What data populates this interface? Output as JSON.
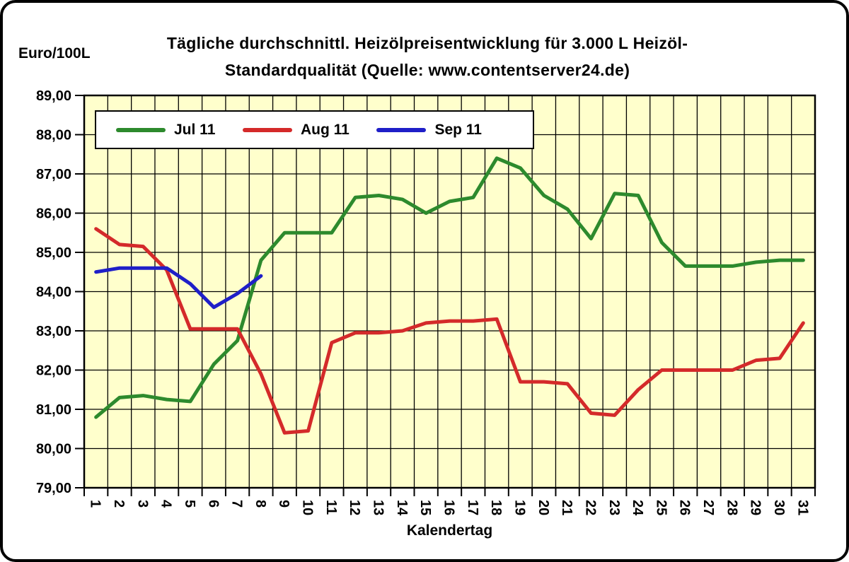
{
  "title": {
    "line1": "Tägliche durchschnittl. Heizölpreisentwicklung für 3.000 L Heizöl-",
    "line2": "Standardqualität (Quelle: www.contentserver24.de)"
  },
  "y_axis": {
    "unit_label": "Euro/100L",
    "tick_labels": [
      "89,00",
      "88,00",
      "87,00",
      "86,00",
      "85,00",
      "84,00",
      "83,00",
      "82,00",
      "81,00",
      "80,00",
      "79,00"
    ]
  },
  "x_axis": {
    "label": "Kalendertag",
    "tick_labels": [
      "1",
      "2",
      "3",
      "4",
      "5",
      "6",
      "7",
      "8",
      "9",
      "10",
      "11",
      "12",
      "13",
      "14",
      "15",
      "16",
      "17",
      "18",
      "19",
      "20",
      "21",
      "22",
      "23",
      "24",
      "25",
      "26",
      "27",
      "28",
      "29",
      "30",
      "31"
    ]
  },
  "legend": {
    "items": [
      {
        "label": "Jul 11",
        "color": "#2d8a2d"
      },
      {
        "label": "Aug 11",
        "color": "#d42a2a"
      },
      {
        "label": "Sep 11",
        "color": "#1f1fc8"
      }
    ]
  },
  "colors": {
    "plot_bg": "#ffffcc",
    "grid": "#000000",
    "axis": "#000000",
    "jul": "#2d8a2d",
    "aug": "#d42a2a",
    "sep": "#1f1fc8"
  },
  "chart_data": {
    "type": "line",
    "title": "Tägliche durchschnittl. Heizölpreisentwicklung für 3.000 L Heizöl-Standardqualität (Quelle: www.contentserver24.de)",
    "xlabel": "Kalendertag",
    "ylabel": "Euro/100L",
    "ylim": [
      79,
      89
    ],
    "ytick_step": 1,
    "grid": true,
    "legend_position": "top",
    "x": [
      1,
      2,
      3,
      4,
      5,
      6,
      7,
      8,
      9,
      10,
      11,
      12,
      13,
      14,
      15,
      16,
      17,
      18,
      19,
      20,
      21,
      22,
      23,
      24,
      25,
      26,
      27,
      28,
      29,
      30,
      31
    ],
    "series": [
      {
        "name": "Jul 11",
        "color": "#2d8a2d",
        "values": [
          80.8,
          81.3,
          81.35,
          81.25,
          81.2,
          82.15,
          82.75,
          84.8,
          85.5,
          85.5,
          85.5,
          86.4,
          86.45,
          86.35,
          86.0,
          86.3,
          86.4,
          87.4,
          87.15,
          86.45,
          86.1,
          85.35,
          86.5,
          86.45,
          85.25,
          84.65,
          84.65,
          84.65,
          84.75,
          84.8,
          84.8
        ]
      },
      {
        "name": "Aug 11",
        "color": "#d42a2a",
        "values": [
          85.6,
          85.2,
          85.15,
          84.55,
          83.05,
          83.05,
          83.05,
          81.9,
          80.4,
          80.45,
          82.7,
          82.95,
          82.95,
          83.0,
          83.2,
          83.25,
          83.25,
          83.3,
          81.7,
          81.7,
          81.65,
          80.9,
          80.85,
          81.5,
          82.0,
          82.0,
          82.0,
          82.0,
          82.25,
          82.3,
          83.2
        ]
      },
      {
        "name": "Sep 11",
        "color": "#1f1fc8",
        "values": [
          84.5,
          84.6,
          84.6,
          84.6,
          84.2,
          83.6,
          83.95,
          84.4
        ]
      }
    ]
  }
}
